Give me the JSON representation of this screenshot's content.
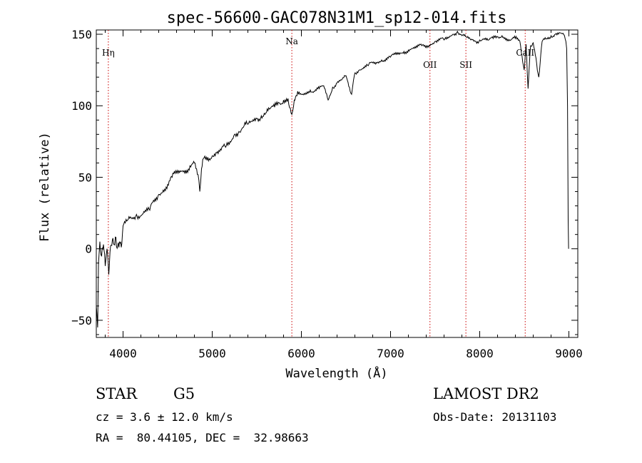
{
  "chart_data": {
    "type": "line",
    "title": "spec-56600-GAC078N31M1_sp12-014.fits",
    "xlabel": "Wavelength (Å)",
    "ylabel": "Flux (relative)",
    "xlim": [
      3700,
      9100
    ],
    "ylim": [
      -62,
      153
    ],
    "x_ticks": [
      4000,
      5000,
      6000,
      7000,
      8000,
      9000
    ],
    "y_ticks": [
      -50,
      0,
      50,
      100,
      150
    ],
    "grid": false,
    "line_color": "#000000",
    "marker_color": "#cc0000",
    "line_markers": [
      {
        "label": "Hη",
        "x": 3835
      },
      {
        "label": "Na",
        "x": 5893
      },
      {
        "label": "OII",
        "x": 7442
      },
      {
        "label": "SII",
        "x": 7845
      },
      {
        "label": "CaII",
        "x": 8510
      }
    ],
    "series": [
      {
        "points": [
          [
            3700,
            -40
          ],
          [
            3715,
            -55
          ],
          [
            3725,
            -10
          ],
          [
            3740,
            5
          ],
          [
            3760,
            -5
          ],
          [
            3780,
            3
          ],
          [
            3800,
            -12
          ],
          [
            3820,
            0
          ],
          [
            3840,
            -18
          ],
          [
            3860,
            2
          ],
          [
            3880,
            6
          ],
          [
            3900,
            3
          ],
          [
            3920,
            8
          ],
          [
            3940,
            2
          ],
          [
            3960,
            5
          ],
          [
            3980,
            1
          ],
          [
            4000,
            16
          ],
          [
            4050,
            20
          ],
          [
            4100,
            21
          ],
          [
            4150,
            24
          ],
          [
            4200,
            23
          ],
          [
            4250,
            27
          ],
          [
            4300,
            27
          ],
          [
            4350,
            33
          ],
          [
            4400,
            38
          ],
          [
            4450,
            41
          ],
          [
            4500,
            45
          ],
          [
            4550,
            50
          ],
          [
            4600,
            53
          ],
          [
            4650,
            54
          ],
          [
            4700,
            55
          ],
          [
            4750,
            58
          ],
          [
            4800,
            60
          ],
          [
            4850,
            48
          ],
          [
            4861,
            40
          ],
          [
            4880,
            56
          ],
          [
            4900,
            63
          ],
          [
            4950,
            64
          ],
          [
            5000,
            65
          ],
          [
            5050,
            67
          ],
          [
            5100,
            69
          ],
          [
            5150,
            71
          ],
          [
            5200,
            75
          ],
          [
            5250,
            80
          ],
          [
            5300,
            82
          ],
          [
            5350,
            85
          ],
          [
            5400,
            87
          ],
          [
            5450,
            89
          ],
          [
            5500,
            91
          ],
          [
            5550,
            93
          ],
          [
            5600,
            95
          ],
          [
            5650,
            98
          ],
          [
            5700,
            99
          ],
          [
            5750,
            102
          ],
          [
            5800,
            104
          ],
          [
            5850,
            105
          ],
          [
            5893,
            94
          ],
          [
            5920,
            104
          ],
          [
            5950,
            107
          ],
          [
            6000,
            108
          ],
          [
            6050,
            109
          ],
          [
            6100,
            111
          ],
          [
            6150,
            110
          ],
          [
            6200,
            112
          ],
          [
            6250,
            114
          ],
          [
            6300,
            104
          ],
          [
            6350,
            113
          ],
          [
            6400,
            116
          ],
          [
            6450,
            118
          ],
          [
            6500,
            121
          ],
          [
            6563,
            108
          ],
          [
            6600,
            123
          ],
          [
            6650,
            125
          ],
          [
            6700,
            127
          ],
          [
            6750,
            128
          ],
          [
            6800,
            130
          ],
          [
            6850,
            130
          ],
          [
            6900,
            132
          ],
          [
            6950,
            133
          ],
          [
            7000,
            134
          ],
          [
            7050,
            136
          ],
          [
            7100,
            136
          ],
          [
            7150,
            138
          ],
          [
            7200,
            139
          ],
          [
            7250,
            140
          ],
          [
            7300,
            141
          ],
          [
            7350,
            142
          ],
          [
            7400,
            142
          ],
          [
            7450,
            143
          ],
          [
            7500,
            145
          ],
          [
            7550,
            146
          ],
          [
            7600,
            146
          ],
          [
            7650,
            148
          ],
          [
            7700,
            150
          ],
          [
            7750,
            152
          ],
          [
            7800,
            149
          ],
          [
            7850,
            148
          ],
          [
            7900,
            146
          ],
          [
            7950,
            145
          ],
          [
            8000,
            146
          ],
          [
            8050,
            147
          ],
          [
            8100,
            146
          ],
          [
            8150,
            147
          ],
          [
            8200,
            148
          ],
          [
            8250,
            149
          ],
          [
            8300,
            147
          ],
          [
            8350,
            146
          ],
          [
            8400,
            147
          ],
          [
            8450,
            145
          ],
          [
            8498,
            125
          ],
          [
            8520,
            143
          ],
          [
            8542,
            112
          ],
          [
            8570,
            142
          ],
          [
            8600,
            144
          ],
          [
            8662,
            120
          ],
          [
            8700,
            145
          ],
          [
            8750,
            147
          ],
          [
            8800,
            149
          ],
          [
            8850,
            150
          ],
          [
            8900,
            151
          ],
          [
            8950,
            149
          ],
          [
            8975,
            140
          ],
          [
            8985,
            100
          ],
          [
            8992,
            20
          ],
          [
            8997,
            0
          ]
        ]
      }
    ],
    "annotations": {
      "object_type": "STAR",
      "subclass": "G5",
      "survey": "LAMOST DR2",
      "velocity": "cz = 3.6 ± 12.0 km/s",
      "obs_date": "Obs-Date: 20131103",
      "coords": "RA =  80.44105, DEC =  32.98663"
    }
  }
}
